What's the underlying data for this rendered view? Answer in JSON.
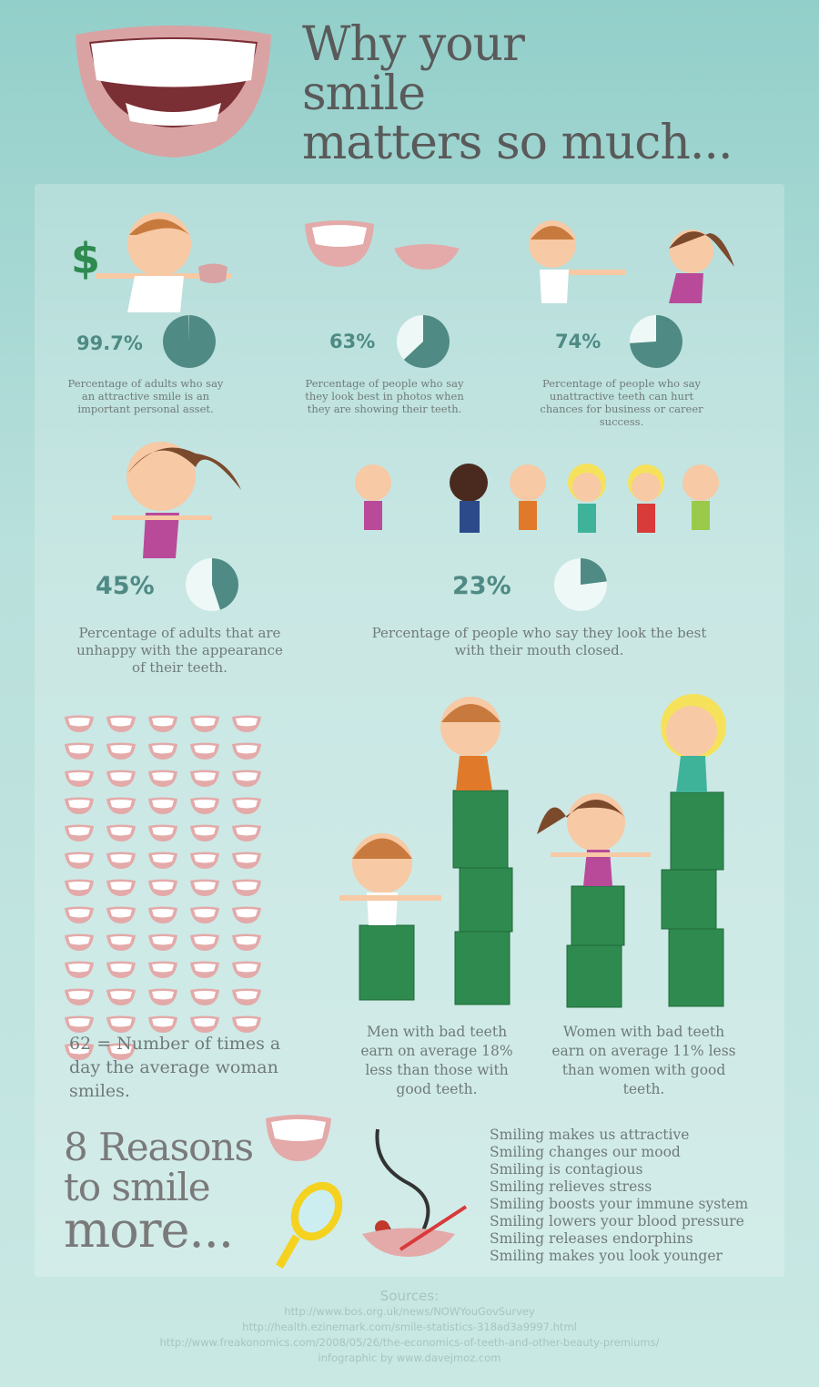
{
  "title": [
    "Why your",
    "smile",
    "matters so much..."
  ],
  "stats": [
    {
      "value": "99.7%",
      "fraction": 0.997,
      "description": "Percentage of adults who say an attractive smile is an important personal asset."
    },
    {
      "value": "63%",
      "fraction": 0.63,
      "description": "Percentage of people who say they look best in photos when they are showing their teeth."
    },
    {
      "value": "74%",
      "fraction": 0.74,
      "description": "Percentage of people who say unattractive teeth can hurt chances for business or career success."
    },
    {
      "value": "45%",
      "fraction": 0.45,
      "description": "Percentage of adults that are unhappy with the appearance of their teeth."
    },
    {
      "value": "23%",
      "fraction": 0.23,
      "description": "Percentage of people who say they look the best with their mouth closed."
    }
  ],
  "colors": {
    "pie_fill": "#4f8a84",
    "pie_rest": "#eef8f6",
    "money": "#2f8a4f",
    "lips": "#e3aaa9"
  },
  "smiles": {
    "count": 62,
    "text": "62 = Number of times a day the average woman smiles."
  },
  "earnings": [
    {
      "text": "Men with bad teeth earn on average 18% less than those with good teeth."
    },
    {
      "text": "Women with bad teeth earn on average 11% less than women with good teeth."
    }
  ],
  "reasons_title": [
    "8 Reasons",
    "to smile",
    "more..."
  ],
  "reasons": [
    "Smiling makes us attractive",
    "Smiling changes our mood",
    "Smiling is contagious",
    "Smiling relieves stress",
    "Smiling boosts your immune system",
    "Smiling lowers your blood pressure",
    "Smiling releases endorphins",
    "Smiling makes you look younger"
  ],
  "sources": {
    "heading": "Sources:",
    "links": [
      "http://www.bos.org.uk/news/NOWYouGovSurvey",
      "http://health.ezinemark.com/smile-statistics-318ad3a9997.html",
      "http://www.freakonomics.com/2008/05/26/the-economics-of-teeth-and-other-beauty-premiums/"
    ],
    "credit": "infographic by www.davejmoz.com"
  }
}
